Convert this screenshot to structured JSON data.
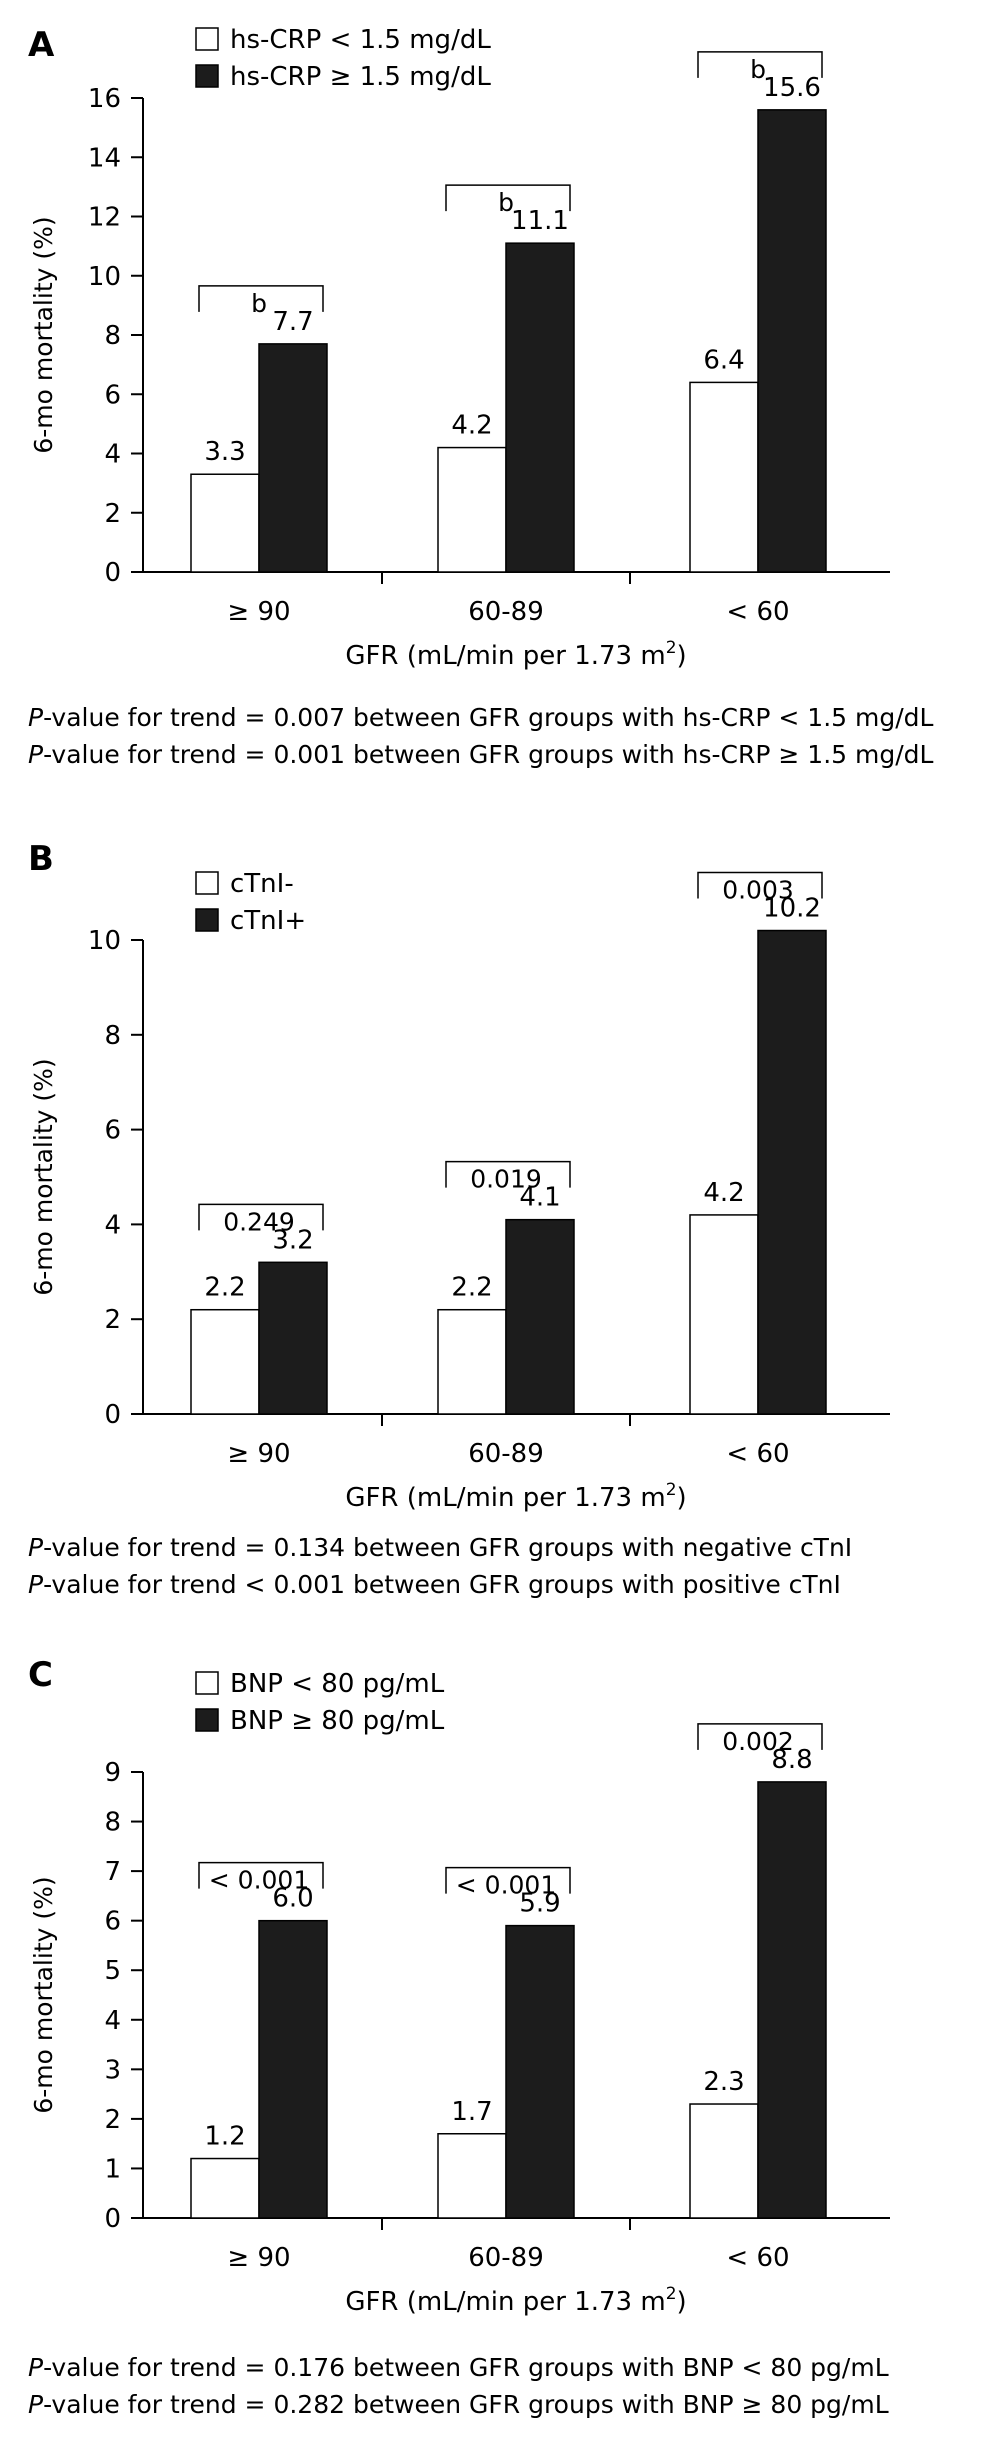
{
  "chart_data": [
    {
      "type": "bar",
      "panel_label": "A",
      "categories": [
        "≥ 90",
        "60-89",
        "< 60"
      ],
      "series": [
        {
          "name": "hs-CRP < 1.5 mg/dL",
          "values": [
            3.3,
            4.2,
            6.4
          ],
          "color": "#ffffff"
        },
        {
          "name": "hs-CRP ≥ 1.5 mg/dL",
          "values": [
            7.7,
            11.1,
            15.6
          ],
          "color": "#1c1c1c"
        }
      ],
      "value_labels": [
        [
          "3.3",
          "4.2",
          "6.4"
        ],
        [
          "7.7",
          "11.1",
          "15.6"
        ]
      ],
      "bracket_labels": [
        "b",
        "b",
        "b"
      ],
      "ylabel": "6-mo mortality (%)",
      "xlabel": "GFR (mL/min per 1.73 m",
      "xlabel_sup": "2",
      "xlabel_end": ")",
      "ylim": [
        0,
        16
      ],
      "yticks": [
        0,
        2,
        4,
        6,
        8,
        10,
        12,
        14,
        16
      ],
      "legend_position": "top-left",
      "notes": [
        {
          "p": "P",
          "text": "-value for trend = 0.007 between GFR groups with hs-CRP < 1.5 mg/dL"
        },
        {
          "p": "P",
          "text": "-value for trend = 0.001 between GFR groups with hs-CRP ≥ 1.5 mg/dL"
        }
      ]
    },
    {
      "type": "bar",
      "panel_label": "B",
      "categories": [
        "≥ 90",
        "60-89",
        "< 60"
      ],
      "series": [
        {
          "name": "cTnI-",
          "values": [
            2.2,
            2.2,
            4.2
          ],
          "color": "#ffffff"
        },
        {
          "name": "cTnI+",
          "values": [
            3.2,
            4.1,
            10.2
          ],
          "color": "#1c1c1c"
        }
      ],
      "value_labels": [
        [
          "2.2",
          "2.2",
          "4.2"
        ],
        [
          "3.2",
          "4.1",
          "10.2"
        ]
      ],
      "bracket_labels": [
        "0.249",
        "0.019",
        "0.003"
      ],
      "ylabel": "6-mo mortality (%)",
      "xlabel": "GFR (mL/min per 1.73 m",
      "xlabel_sup": "2",
      "xlabel_end": ")",
      "ylim": [
        0,
        10
      ],
      "yticks": [
        0,
        2,
        4,
        6,
        8,
        10
      ],
      "legend_position": "top-left",
      "notes": [
        {
          "p": "P",
          "text": "-value for trend = 0.134 between GFR groups with negative cTnI"
        },
        {
          "p": "P",
          "text": "-value for trend < 0.001 between GFR groups with positive cTnI"
        }
      ]
    },
    {
      "type": "bar",
      "panel_label": "C",
      "categories": [
        "≥ 90",
        "60-89",
        "< 60"
      ],
      "series": [
        {
          "name": "BNP < 80 pg/mL",
          "values": [
            1.2,
            1.7,
            2.3
          ],
          "color": "#ffffff"
        },
        {
          "name": "BNP ≥ 80 pg/mL",
          "values": [
            6.0,
            5.9,
            8.8
          ],
          "color": "#1c1c1c"
        }
      ],
      "value_labels": [
        [
          "1.2",
          "1.7",
          "2.3"
        ],
        [
          "6.0",
          "5.9",
          "8.8"
        ]
      ],
      "bracket_labels": [
        "< 0.001",
        "< 0.001",
        "0.002"
      ],
      "ylabel": "6-mo mortality (%)",
      "xlabel": "GFR (mL/min per 1.73 m",
      "xlabel_sup": "2",
      "xlabel_end": ")",
      "ylim": [
        0,
        9
      ],
      "yticks": [
        0,
        1,
        2,
        3,
        4,
        5,
        6,
        7,
        8,
        9
      ],
      "legend_position": "top-left",
      "notes": [
        {
          "p": "P",
          "text": "-value for trend = 0.176 between GFR groups with BNP < 80 pg/mL"
        },
        {
          "p": "P",
          "text": "-value for trend = 0.282 between GFR groups with BNP ≥ 80 pg/mL"
        }
      ]
    }
  ]
}
